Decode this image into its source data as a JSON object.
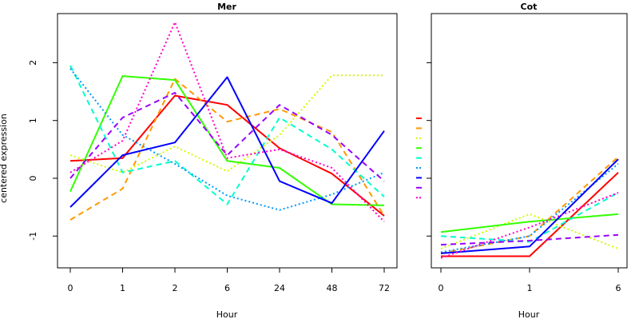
{
  "chart_data": [
    {
      "type": "line",
      "title": "Mer",
      "xlabel": "Hour",
      "ylabel": "centered expression",
      "categories": [
        "0",
        "1",
        "2",
        "6",
        "24",
        "48",
        "72"
      ],
      "yticks": [
        "-1",
        "0",
        "1",
        "2"
      ],
      "ylim": [
        -1.55,
        2.85
      ],
      "series": [
        {
          "color": "#ff0000",
          "dash": "solid",
          "values": [
            0.3,
            0.35,
            1.43,
            1.27,
            0.52,
            0.08,
            -0.65
          ]
        },
        {
          "color": "#ff9900",
          "dash": "dashed",
          "values": [
            -0.72,
            -0.18,
            1.72,
            0.98,
            1.2,
            0.8,
            -0.65
          ]
        },
        {
          "color": "#ccff00",
          "dash": "dotted",
          "values": [
            0.4,
            0.1,
            0.55,
            0.12,
            0.75,
            1.78,
            1.78
          ]
        },
        {
          "color": "#33ff00",
          "dash": "solid",
          "values": [
            -0.23,
            1.77,
            1.7,
            0.3,
            0.18,
            -0.45,
            -0.47
          ]
        },
        {
          "color": "#00ffcc",
          "dash": "dashed",
          "values": [
            1.95,
            0.1,
            0.3,
            -0.45,
            1.05,
            0.5,
            -0.32
          ]
        },
        {
          "color": "#0099ff",
          "dash": "dotted",
          "values": [
            1.9,
            0.75,
            0.25,
            -0.3,
            -0.55,
            -0.28,
            0.1
          ]
        },
        {
          "color": "#0000ff",
          "dash": "solid",
          "values": [
            -0.5,
            0.4,
            0.62,
            1.75,
            -0.05,
            -0.43,
            0.82
          ]
        },
        {
          "color": "#9900ff",
          "dash": "dashed",
          "values": [
            0.0,
            1.05,
            1.48,
            0.4,
            1.27,
            0.75,
            -0.05
          ]
        },
        {
          "color": "#ff00cc",
          "dash": "dotted",
          "values": [
            0.1,
            0.65,
            2.7,
            0.35,
            0.5,
            0.18,
            -0.75
          ]
        }
      ]
    },
    {
      "type": "line",
      "title": "Cot",
      "xlabel": "Hour",
      "ylabel": "",
      "categories": [
        "0",
        "1",
        "6"
      ],
      "ylim": [
        -1.55,
        2.85
      ],
      "series": [
        {
          "color": "#ff0000",
          "dash": "solid",
          "values": [
            -1.35,
            -1.35,
            0.1
          ]
        },
        {
          "color": "#ff9900",
          "dash": "dashed",
          "values": [
            -1.3,
            -1.0,
            0.37
          ]
        },
        {
          "color": "#ccff00",
          "dash": "dotted",
          "values": [
            -1.22,
            -0.62,
            -1.22
          ]
        },
        {
          "color": "#33ff00",
          "dash": "solid",
          "values": [
            -0.93,
            -0.75,
            -0.62
          ]
        },
        {
          "color": "#00ffcc",
          "dash": "dashed",
          "values": [
            -1.0,
            -1.1,
            -0.25
          ]
        },
        {
          "color": "#0099ff",
          "dash": "dotted",
          "values": [
            -1.28,
            -1.0,
            0.25
          ]
        },
        {
          "color": "#0000ff",
          "dash": "solid",
          "values": [
            -1.3,
            -1.18,
            0.33
          ]
        },
        {
          "color": "#9900ff",
          "dash": "dashed",
          "values": [
            -1.15,
            -1.08,
            -0.98
          ]
        },
        {
          "color": "#ff00cc",
          "dash": "dotted",
          "values": [
            -1.38,
            -0.85,
            -0.25
          ]
        }
      ]
    }
  ]
}
